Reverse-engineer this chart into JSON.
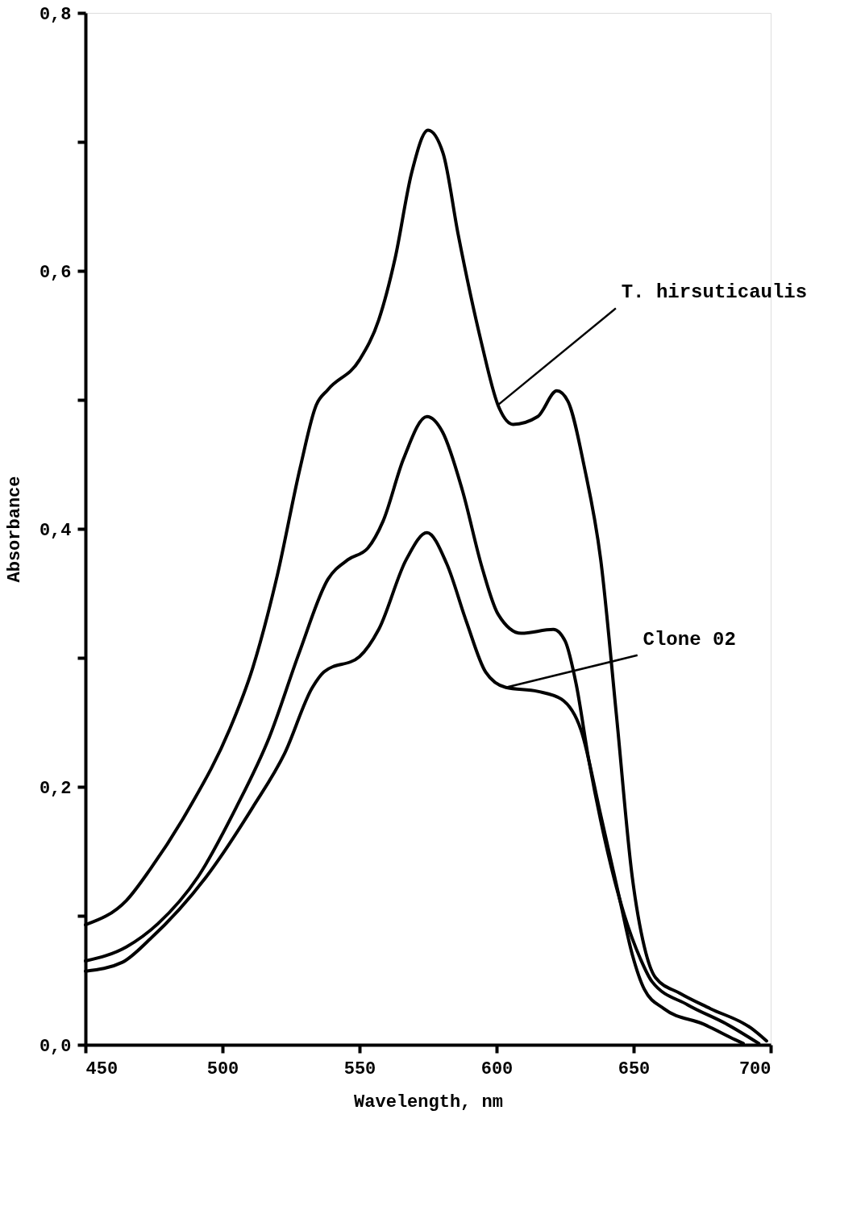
{
  "chart_data": {
    "type": "line",
    "xlabel": "Wavelength, nm",
    "ylabel": "Absorbance",
    "xlim": [
      450,
      700
    ],
    "xticks": [
      450,
      500,
      550,
      600,
      650,
      700
    ],
    "ylim": [
      0,
      0.8
    ],
    "yticks": [
      {
        "value": 0,
        "label": "0,0"
      },
      {
        "value": 0.1,
        "label": null
      },
      {
        "value": 0.2,
        "label": "0,2"
      },
      {
        "value": 0.3,
        "label": null
      },
      {
        "value": 0.4,
        "label": "0,4"
      },
      {
        "value": 0.5,
        "label": null
      },
      {
        "value": 0.6,
        "label": "0,6"
      },
      {
        "value": 0.7,
        "label": null
      },
      {
        "value": 0.8,
        "label": "0,8"
      }
    ],
    "marker": "none",
    "line_style": "solid",
    "series": [
      {
        "color": "#000000",
        "x": [
          450,
          465,
          473.6,
          488,
          502.5,
          511,
          520,
          528.4,
          534.2,
          538.5,
          550,
          557,
          563,
          569,
          575,
          580.5,
          586,
          594.5,
          600.5,
          606,
          615,
          622,
          626,
          632,
          638,
          643.7,
          649.5,
          653.9,
          658,
          666.8,
          678,
          692.8,
          698.5
        ],
        "values": [
          0.093,
          0.112,
          0.136,
          0.184,
          0.244,
          0.292,
          0.364,
          0.448,
          0.496,
          0.508,
          0.531,
          0.562,
          0.61,
          0.676,
          0.709,
          0.691,
          0.628,
          0.544,
          0.496,
          0.481,
          0.487,
          0.507,
          0.499,
          0.448,
          0.376,
          0.256,
          0.13,
          0.076,
          0.052,
          0.04,
          0.028,
          0.013,
          0.003
        ]
      },
      {
        "color": "#000000",
        "x": [
          450,
          465,
          476.5,
          491,
          505,
          517,
          528,
          538.5,
          545.7,
          553,
          558.6,
          566,
          574.6,
          580.3,
          587.5,
          594.7,
          600.5,
          609,
          620.7,
          625,
          629,
          633.7,
          639.4,
          646.7,
          652.4,
          656.7,
          669.7,
          684,
          695.7
        ],
        "values": [
          0.065,
          0.076,
          0.094,
          0.13,
          0.184,
          0.238,
          0.304,
          0.361,
          0.376,
          0.385,
          0.406,
          0.454,
          0.487,
          0.475,
          0.43,
          0.37,
          0.334,
          0.319,
          0.322,
          0.313,
          0.28,
          0.22,
          0.16,
          0.1,
          0.067,
          0.049,
          0.031,
          0.016,
          0.001
        ]
      },
      {
        "color": "#000000",
        "x": [
          450,
          463.5,
          473.6,
          494,
          511,
          522.7,
          532.8,
          537,
          550,
          557,
          567,
          574.6,
          581.8,
          589,
          596,
          603.4,
          615,
          623.6,
          630.8,
          638,
          645,
          649.5,
          653.9,
          661,
          675.5,
          687,
          690
        ],
        "values": [
          0.057,
          0.064,
          0.082,
          0.13,
          0.184,
          0.226,
          0.277,
          0.289,
          0.301,
          0.322,
          0.376,
          0.397,
          0.373,
          0.328,
          0.289,
          0.277,
          0.274,
          0.268,
          0.244,
          0.178,
          0.112,
          0.07,
          0.043,
          0.028,
          0.016,
          0.004,
          0.001
        ]
      }
    ],
    "annotations": [
      {
        "text": "T. hirsuticaulis",
        "x": 600.5,
        "y": 0.496
      },
      {
        "text": "Clone 02",
        "x": 603.4,
        "y": 0.277
      }
    ]
  }
}
